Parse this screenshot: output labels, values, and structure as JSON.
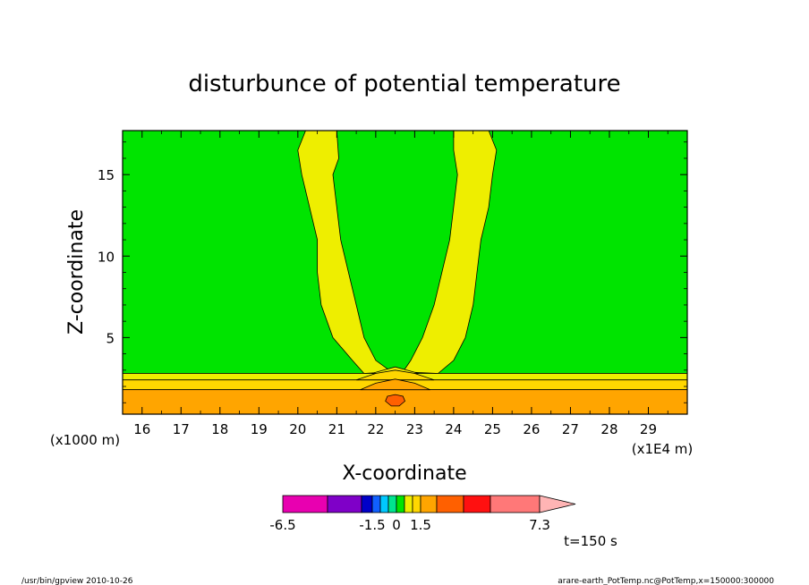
{
  "chart_data": {
    "type": "contour",
    "title": "disturbunce of potential temperature",
    "xlabel": "X-coordinate",
    "ylabel": "Z-coordinate",
    "x_units_note": "(x1E4 m)",
    "y_units_note": "(x1000 m)",
    "xlim": [
      15.5,
      30.0
    ],
    "ylim": [
      0.3,
      17.7
    ],
    "x_ticks": [
      "16",
      "17",
      "18",
      "19",
      "20",
      "21",
      "22",
      "23",
      "24",
      "25",
      "26",
      "27",
      "28",
      "29"
    ],
    "y_ticks": [
      "5",
      "10",
      "15"
    ],
    "x_tick_values": [
      16,
      17,
      18,
      19,
      20,
      21,
      22,
      23,
      24,
      25,
      26,
      27,
      28,
      29
    ],
    "y_tick_values": [
      5,
      10,
      15
    ],
    "background_color": "#00e400",
    "bands": [
      {
        "z_bottom": 2.4,
        "z_top": 2.8,
        "color": "#eeee00"
      },
      {
        "z_bottom": 1.8,
        "z_top": 2.4,
        "color": "#ffd700"
      },
      {
        "z_bottom": 0.3,
        "z_top": 1.8,
        "color": "#ffa500"
      }
    ],
    "regions": [
      {
        "name": "left-yellow-plume",
        "color": "#eeee00",
        "points": [
          [
            20.2,
            17.7
          ],
          [
            21.0,
            17.7
          ],
          [
            21.05,
            16.0
          ],
          [
            20.9,
            15.0
          ],
          [
            21.0,
            13.0
          ],
          [
            21.1,
            11.0
          ],
          [
            21.3,
            9.0
          ],
          [
            21.5,
            7.0
          ],
          [
            21.7,
            5.0
          ],
          [
            22.0,
            3.6
          ],
          [
            22.4,
            2.9
          ],
          [
            21.7,
            2.8
          ],
          [
            21.4,
            3.6
          ],
          [
            20.9,
            5.0
          ],
          [
            20.6,
            7.0
          ],
          [
            20.5,
            9.0
          ],
          [
            20.5,
            11.0
          ],
          [
            20.3,
            13.0
          ],
          [
            20.1,
            15.0
          ],
          [
            20.0,
            16.5
          ]
        ]
      },
      {
        "name": "right-yellow-plume",
        "color": "#eeee00",
        "points": [
          [
            24.0,
            17.7
          ],
          [
            24.9,
            17.7
          ],
          [
            25.1,
            16.5
          ],
          [
            25.0,
            15.0
          ],
          [
            24.9,
            13.0
          ],
          [
            24.7,
            11.0
          ],
          [
            24.6,
            9.0
          ],
          [
            24.5,
            7.0
          ],
          [
            24.3,
            5.0
          ],
          [
            24.0,
            3.6
          ],
          [
            23.6,
            2.8
          ],
          [
            22.7,
            2.9
          ],
          [
            22.9,
            3.6
          ],
          [
            23.2,
            5.0
          ],
          [
            23.5,
            7.0
          ],
          [
            23.7,
            9.0
          ],
          [
            23.9,
            11.0
          ],
          [
            24.0,
            13.0
          ],
          [
            24.1,
            15.0
          ],
          [
            24.0,
            16.5
          ]
        ]
      },
      {
        "name": "central-yellow-bump",
        "color": "#eeee00",
        "points": [
          [
            21.9,
            2.8
          ],
          [
            22.2,
            3.0
          ],
          [
            22.5,
            3.2
          ],
          [
            22.8,
            3.0
          ],
          [
            23.1,
            2.8
          ]
        ]
      },
      {
        "name": "central-gold-bump",
        "color": "#ffd700",
        "points": [
          [
            21.5,
            2.4
          ],
          [
            22.0,
            2.8
          ],
          [
            22.5,
            3.0
          ],
          [
            23.0,
            2.8
          ],
          [
            23.5,
            2.4
          ]
        ]
      },
      {
        "name": "central-orange-bump",
        "color": "#ffa500",
        "points": [
          [
            21.6,
            1.8
          ],
          [
            22.0,
            2.2
          ],
          [
            22.5,
            2.45
          ],
          [
            23.0,
            2.2
          ],
          [
            23.4,
            1.8
          ]
        ]
      },
      {
        "name": "core-maximum",
        "color": "#ff6000",
        "points": [
          [
            22.3,
            1.4
          ],
          [
            22.5,
            1.5
          ],
          [
            22.7,
            1.4
          ],
          [
            22.75,
            1.1
          ],
          [
            22.6,
            0.8
          ],
          [
            22.4,
            0.8
          ],
          [
            22.25,
            1.1
          ]
        ]
      }
    ],
    "colorbar": {
      "colors": [
        "#e800b0",
        "#7f00c8",
        "#0000c8",
        "#1060ff",
        "#00c8ff",
        "#00e490",
        "#00e400",
        "#eeee00",
        "#ffd700",
        "#ffa500",
        "#ff6000",
        "#ff1010",
        "#ff7878"
      ],
      "widths": [
        50,
        38,
        12,
        9,
        9,
        9,
        9,
        9,
        9,
        18,
        30,
        30,
        55
      ],
      "extend_color": "#ffb4b4",
      "labels": [
        {
          "text": "-6.5",
          "at_segment_edge": 0
        },
        {
          "text": "-1.5",
          "at_segment_edge": 3
        },
        {
          "text": "0",
          "at_segment_edge": 6
        },
        {
          "text": "1.5",
          "at_segment_edge": 9
        },
        {
          "text": "7.3",
          "at_segment_edge": 13
        }
      ]
    },
    "time_label": "t=150 s"
  },
  "footer": {
    "left": "/usr/bin/gpview  2010-10-26",
    "right": "arare-earth_PotTemp.nc@PotTemp,x=150000:300000"
  }
}
